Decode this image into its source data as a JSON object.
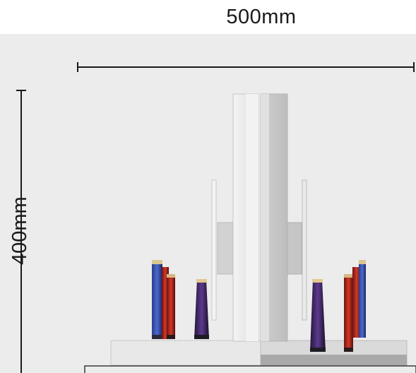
{
  "dimensions": {
    "width_label": "500mm",
    "height_label": "400mm"
  },
  "colors": {
    "background": "#ececec",
    "ink": "#1a1a1a",
    "glass": "#e4e4e4",
    "frame_dark": "#9a9a9a"
  },
  "image": {
    "subject_icons": [
      "glass-stand-icon",
      "thread-spool-icon"
    ]
  }
}
